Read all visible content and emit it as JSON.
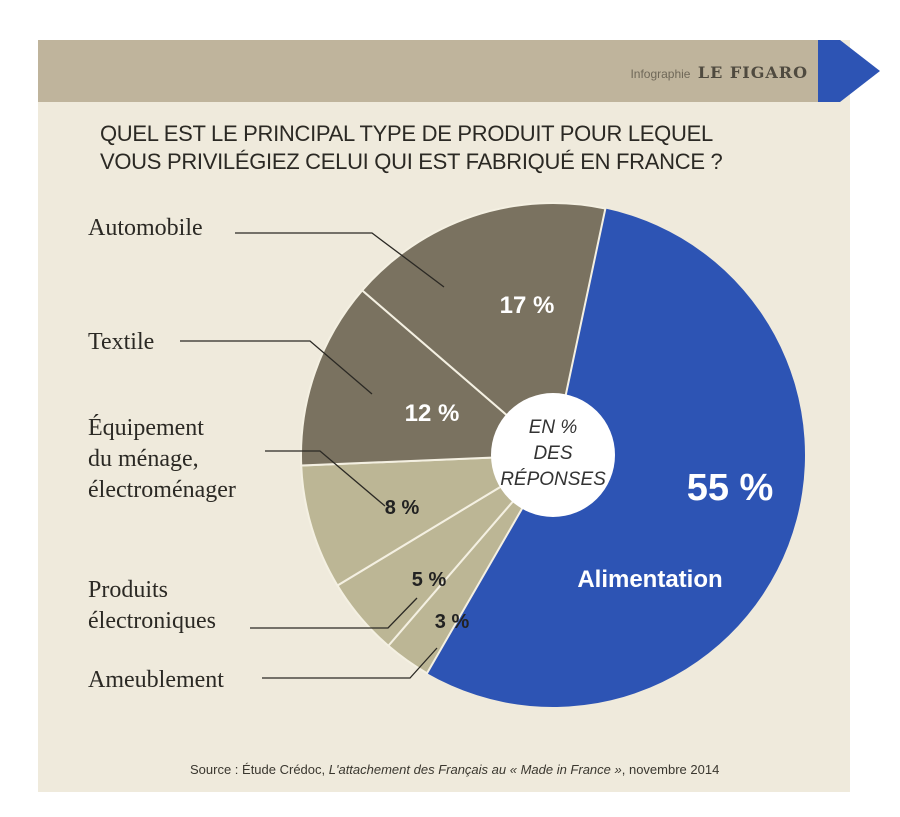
{
  "header": {
    "credit_prefix": "Infographie",
    "credit_brand": "LE FIGARO",
    "question": "QUEL EST LE PRINCIPAL TYPE DE PRODUIT POUR LEQUEL\nVOUS PRIVILÉGIEZ CELUI QUI EST FABRIQUÉ EN FRANCE ?"
  },
  "center_label": [
    "EN %",
    "DES",
    "RÉPONSES"
  ],
  "colors": {
    "alimentation": "#2d54b4",
    "dark": "#7a7260",
    "light": "#bcb695",
    "separator": "#f4f0e2"
  },
  "chart_data": {
    "type": "pie",
    "subtype": "donut",
    "unit": "%",
    "slices": [
      {
        "label": "Alimentation",
        "value": 55,
        "value_label": "55 %"
      },
      {
        "label": "Ameublement",
        "value": 3,
        "value_label": "3 %"
      },
      {
        "label": "Produits électroniques",
        "value": 5,
        "value_label": "5 %"
      },
      {
        "label": "Équipement du ménage, électroménager",
        "value": 8,
        "value_label": "8 %"
      },
      {
        "label": "Textile",
        "value": 12,
        "value_label": "12 %"
      },
      {
        "label": "Automobile",
        "value": 17,
        "value_label": "17 %"
      }
    ]
  },
  "labels": {
    "automobile": "Automobile",
    "textile": "Textile",
    "equipement_1": "Équipement",
    "equipement_2": "du ménage,",
    "equipement_3": "électroménager",
    "produits_1": "Produits",
    "produits_2": "électroniques",
    "ameublement": "Ameublement"
  },
  "source": {
    "prefix": "Source : Étude Crédoc, ",
    "title": "L'attachement  des Français au « Made in France »",
    "suffix": ", novembre 2014"
  }
}
